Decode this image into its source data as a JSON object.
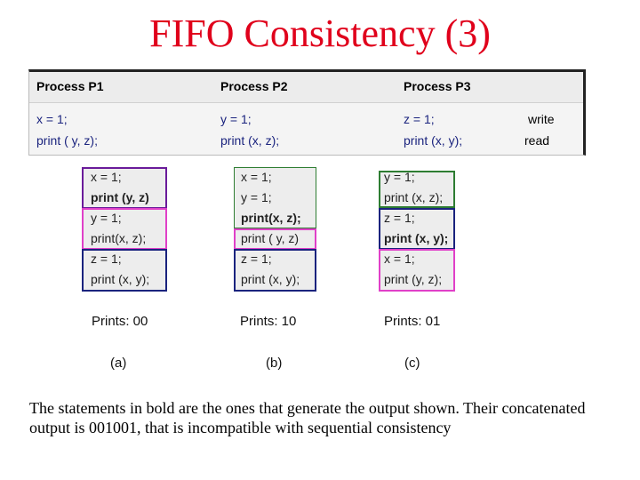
{
  "title": "FIFO Consistency (3)",
  "table": {
    "headers": [
      "Process P1",
      "Process P2",
      "Process P3"
    ],
    "row1": {
      "p1": "x = 1;",
      "p2": "y = 1;",
      "p3": "z = 1;",
      "note": "write"
    },
    "row2": {
      "p1": "print ( y, z);",
      "p2": "print (x, z);",
      "p3": "print (x, y);",
      "note": "read"
    }
  },
  "colors": {
    "title": "#e0001b",
    "purple_box": "#6a1b9a",
    "pink_box": "#e040c8",
    "blue_box": "#1a237e",
    "p2_green_box": "#2e7d32"
  },
  "sequences": [
    {
      "lines": [
        "x = 1;",
        "print (y, z)",
        "y = 1;",
        "print(x, z);",
        "z = 1;",
        "print (x, y);"
      ],
      "bold_index": 1,
      "prints": "Prints: 00",
      "label": "(a)"
    },
    {
      "lines": [
        "x = 1;",
        "y = 1;",
        "print(x, z);",
        "print ( y, z)",
        "z = 1;",
        "print (x, y);"
      ],
      "bold_index": 2,
      "prints": "Prints: 10",
      "label": "(b)"
    },
    {
      "lines": [
        "y = 1;",
        "print (x, z);",
        "z = 1;",
        "print (x, y);",
        "x = 1;",
        "print (y, z);"
      ],
      "bold_index": 3,
      "prints": "Prints:  01",
      "label": "(c)"
    }
  ],
  "caption": "The statements in bold are the ones that generate the output shown. Their concatenated output is 001001, that is incompatible with sequential consistency"
}
